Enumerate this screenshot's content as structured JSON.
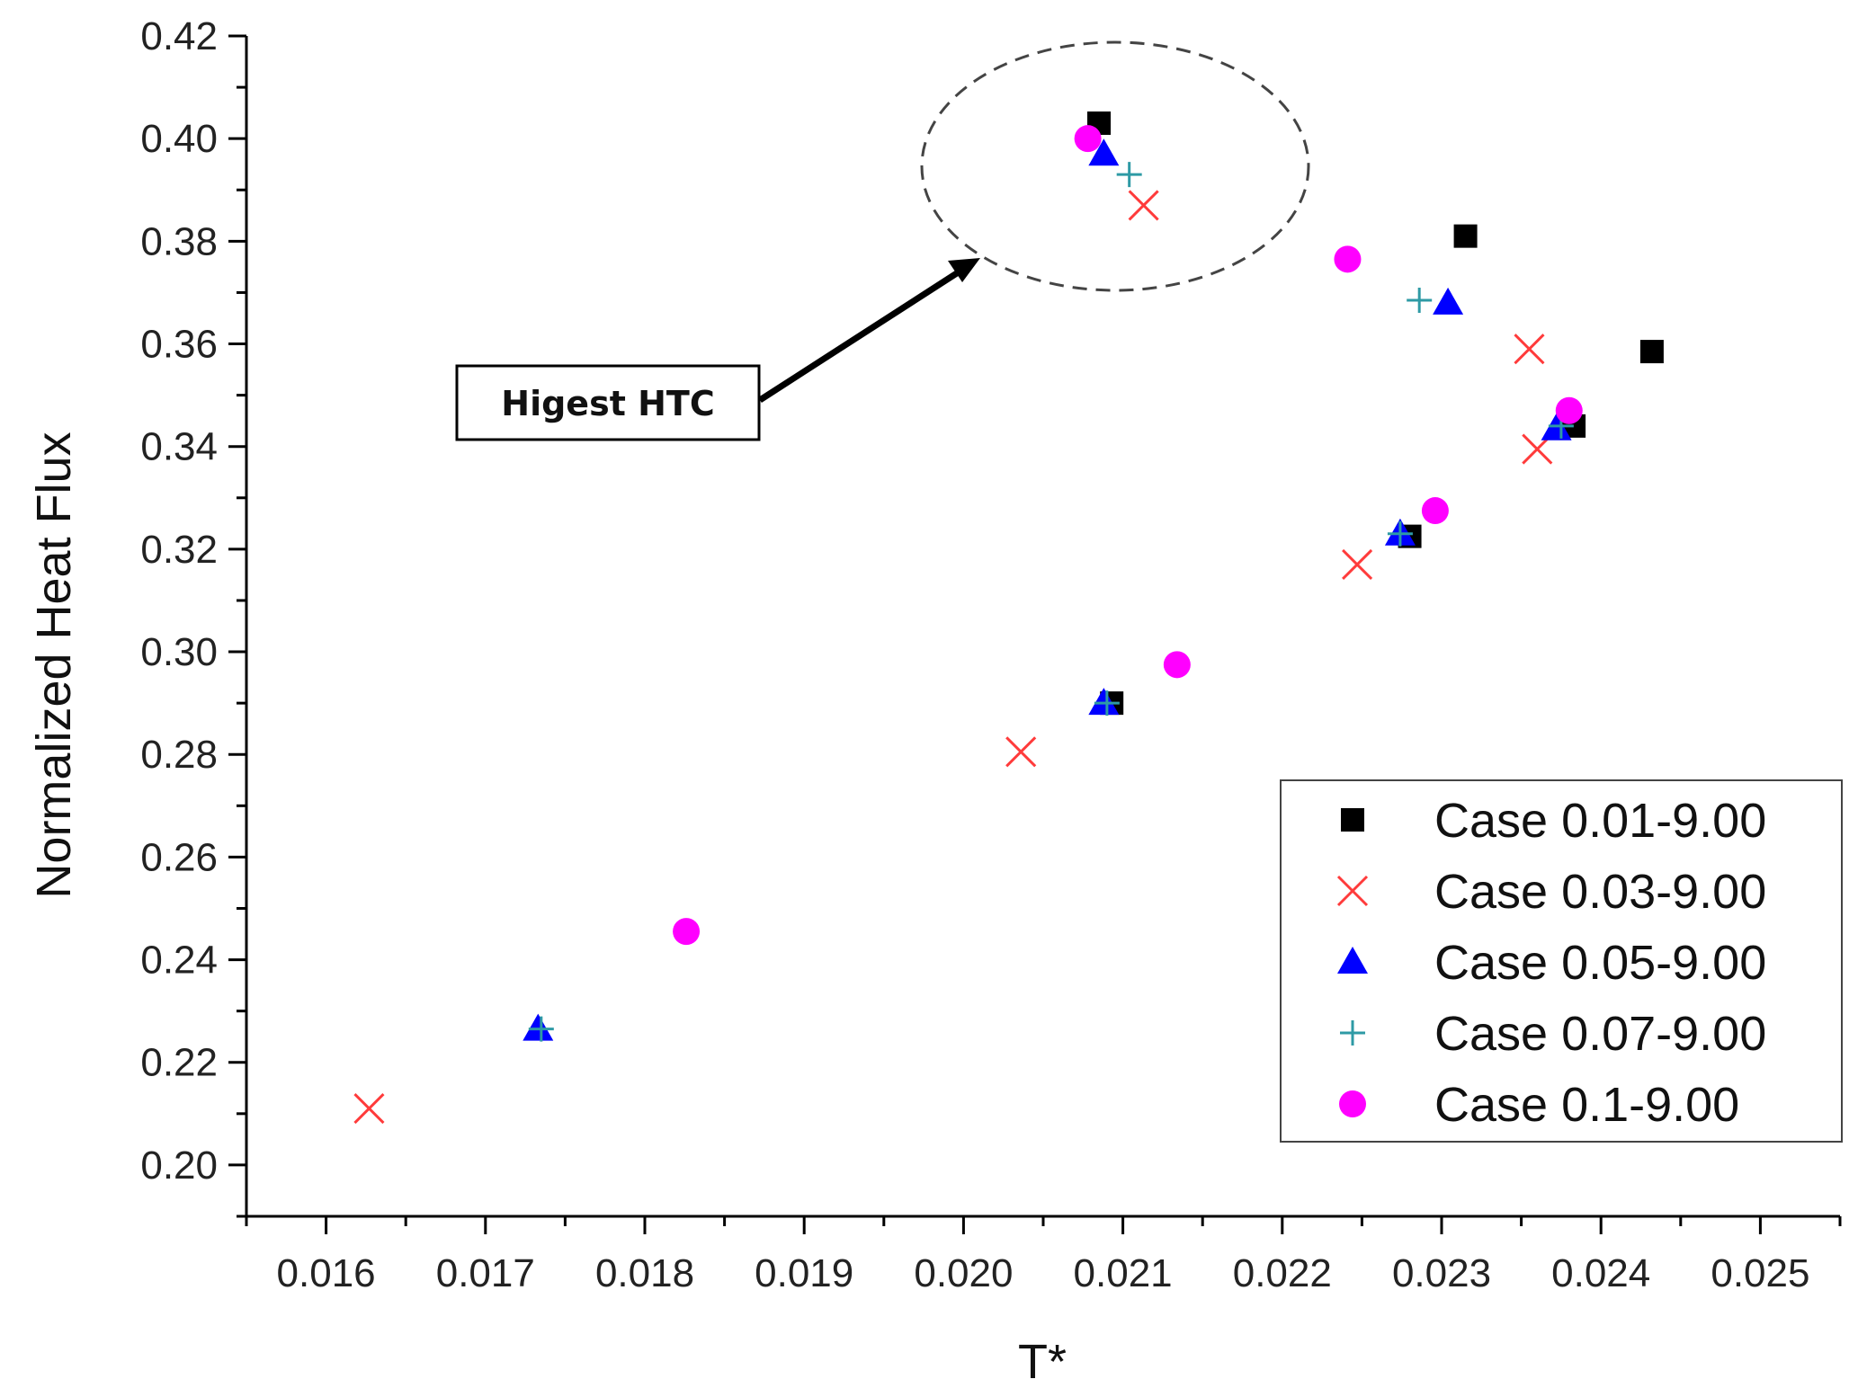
{
  "chart_data": {
    "type": "scatter",
    "xlabel": "T*",
    "ylabel": "Normalized Heat Flux",
    "xlim": [
      0.0155,
      0.0255
    ],
    "ylim": [
      0.19,
      0.42
    ],
    "x_ticks": [
      0.016,
      0.017,
      0.018,
      0.019,
      0.02,
      0.021,
      0.022,
      0.023,
      0.024,
      0.025
    ],
    "x_tick_labels": [
      "0.016",
      "0.017",
      "0.018",
      "0.019",
      "0.020",
      "0.021",
      "0.022",
      "0.023",
      "0.024",
      "0.025"
    ],
    "y_ticks": [
      0.2,
      0.22,
      0.24,
      0.26,
      0.28,
      0.3,
      0.32,
      0.34,
      0.36,
      0.38,
      0.4,
      0.42
    ],
    "y_tick_labels": [
      "0.20",
      "0.22",
      "0.24",
      "0.26",
      "0.28",
      "0.30",
      "0.32",
      "0.34",
      "0.36",
      "0.38",
      "0.40",
      "0.42"
    ],
    "grid": false,
    "legend_position": "bottom-right",
    "series": [
      {
        "name": "Case 0.01-9.00",
        "marker": "square",
        "color": "#000000",
        "points": [
          [
            0.02085,
            0.403
          ],
          [
            0.02315,
            0.381
          ],
          [
            0.02432,
            0.3585
          ],
          [
            0.02383,
            0.344
          ],
          [
            0.0228,
            0.3225
          ],
          [
            0.02093,
            0.29
          ]
        ]
      },
      {
        "name": "Case 0.03-9.00",
        "marker": "x",
        "color": "#ff3b3b",
        "points": [
          [
            0.02113,
            0.387
          ],
          [
            0.02355,
            0.359
          ],
          [
            0.0236,
            0.3395
          ],
          [
            0.02247,
            0.317
          ],
          [
            0.02036,
            0.2805
          ],
          [
            0.01627,
            0.211
          ]
        ]
      },
      {
        "name": "Case 0.05-9.00",
        "marker": "triangle",
        "color": "#0000ff",
        "points": [
          [
            0.02088,
            0.397
          ],
          [
            0.02304,
            0.368
          ],
          [
            0.02372,
            0.3435
          ],
          [
            0.02274,
            0.323
          ],
          [
            0.02088,
            0.29
          ],
          [
            0.01733,
            0.2265
          ]
        ]
      },
      {
        "name": "Case 0.07-9.00",
        "marker": "plus",
        "color": "#2e9aa5",
        "points": [
          [
            0.02104,
            0.393
          ],
          [
            0.02286,
            0.3685
          ],
          [
            0.02375,
            0.344
          ],
          [
            0.02274,
            0.323
          ],
          [
            0.0209,
            0.29
          ],
          [
            0.01735,
            0.2265
          ]
        ]
      },
      {
        "name": "Case 0.1-9.00",
        "marker": "circle",
        "color": "#ff00ff",
        "points": [
          [
            0.02078,
            0.4
          ],
          [
            0.02241,
            0.3765
          ],
          [
            0.0238,
            0.347
          ],
          [
            0.02296,
            0.3275
          ],
          [
            0.02134,
            0.2975
          ],
          [
            0.01826,
            0.2455
          ]
        ]
      }
    ],
    "annotations": [
      {
        "text": "Higest HTC",
        "target": "circled highest points"
      }
    ]
  }
}
